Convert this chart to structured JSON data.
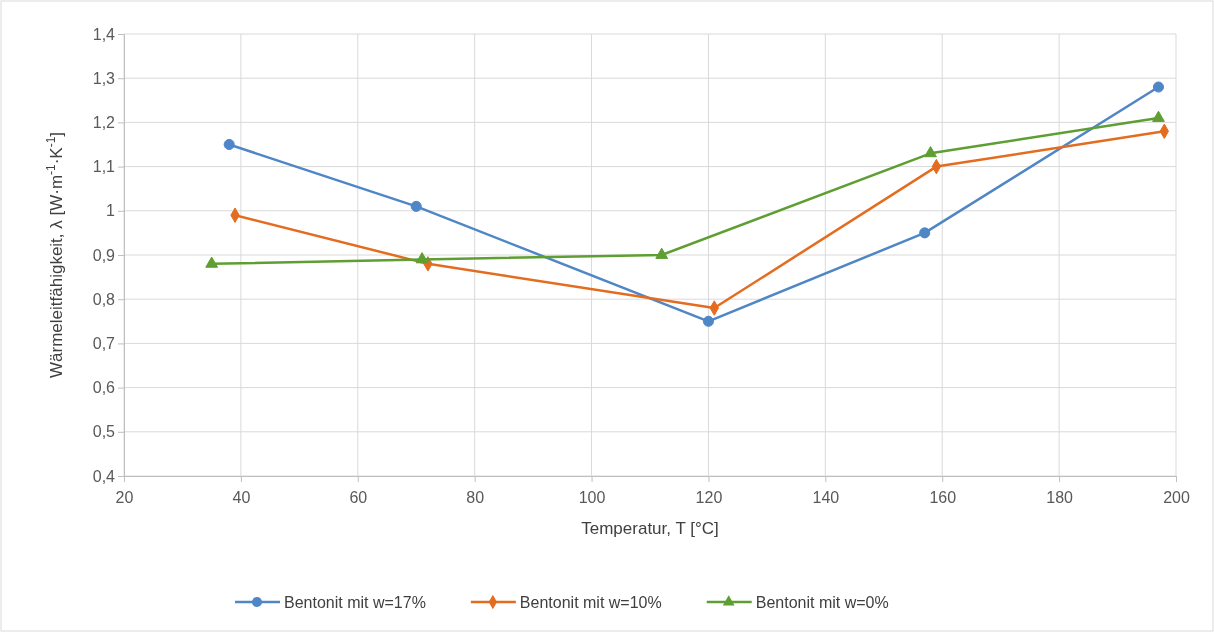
{
  "chart_data": {
    "type": "line",
    "xlabel": "Temperatur, T [°C]",
    "ylabel": "Wärmeleitfähigkeit, λ [W·m$^{-1}$·K$^{-1}$]",
    "xlim": [
      20,
      200
    ],
    "xticks": [
      20,
      40,
      60,
      80,
      100,
      120,
      140,
      160,
      180,
      200
    ],
    "ylim": [
      0.4,
      1.4
    ],
    "yticks": [
      {
        "value": 0.4,
        "label": "0,4"
      },
      {
        "value": 0.5,
        "label": "0,5"
      },
      {
        "value": 0.6,
        "label": "0,6"
      },
      {
        "value": 0.7,
        "label": "0,7"
      },
      {
        "value": 0.8,
        "label": "0,8"
      },
      {
        "value": 0.9,
        "label": "0,9"
      },
      1,
      {
        "value": 1.1,
        "label": "1,1"
      },
      {
        "value": 1.2,
        "label": "1,2"
      },
      {
        "value": 1.3,
        "label": "1,3"
      },
      {
        "value": 1.4,
        "label": "1,4"
      }
    ],
    "grid": true,
    "legend": "bottom",
    "line_style": "solid",
    "series": [
      {
        "name": "Bentonit mit w=17%",
        "color": "#4f86c6",
        "marker": "circle",
        "x": [
          38,
          70,
          120,
          157,
          197
        ],
        "values": [
          1.15,
          1.01,
          0.75,
          0.95,
          1.28
        ]
      },
      {
        "name": "Bentonit mit w=10%",
        "color": "#e46c1f",
        "marker": "diamond",
        "x": [
          39,
          72,
          121,
          159,
          198
        ],
        "values": [
          0.99,
          0.88,
          0.78,
          1.1,
          1.18
        ]
      },
      {
        "name": "Bentonit mit w=0%",
        "color": "#5e9e32",
        "marker": "triangle",
        "x": [
          35,
          71,
          112,
          158,
          197
        ],
        "values": [
          0.88,
          0.89,
          0.9,
          1.13,
          1.21
        ]
      }
    ]
  }
}
